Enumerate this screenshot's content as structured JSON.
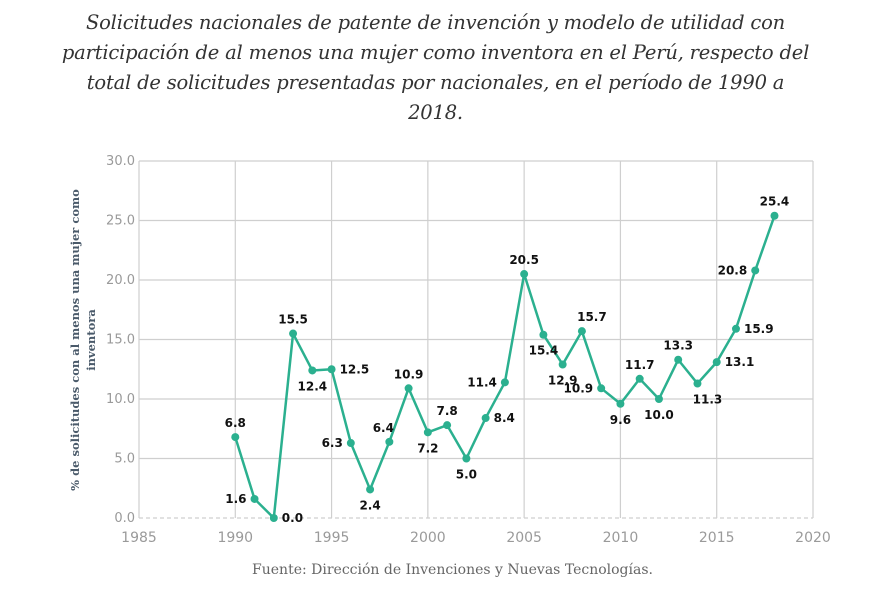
{
  "title": "Solicitudes nacionales de patente de invención y modelo de utilidad con participación de al menos una mujer como inventora en el Perú, respecto del total de solicitudes presentadas por nacionales, en el período de 1990 a 2018.",
  "source": "Fuente: Dirección de Invenciones y Nuevas Tecnologías.",
  "chart_data": {
    "type": "line",
    "title": "Solicitudes nacionales de patente de invención y modelo de utilidad con participación de al menos una mujer como inventora en el Perú, respecto del total de solicitudes presentadas por nacionales, en el período de 1990 a 2018.",
    "xlabel": "",
    "ylabel": [
      "% de solicitudes con al menos una mujer como",
      "inventora"
    ],
    "xlim": [
      1985,
      2020
    ],
    "ylim": [
      0,
      30
    ],
    "xticks": [
      "1985",
      "1990",
      "1995",
      "2000",
      "2005",
      "2010",
      "2015",
      "2020"
    ],
    "yticks": [
      "0.0",
      "5.0",
      "10.0",
      "15.0",
      "20.0",
      "25.0",
      "30.0"
    ],
    "grid": true,
    "color": "#2bb08f",
    "x": [
      1990,
      1991,
      1992,
      1993,
      1994,
      1995,
      1996,
      1997,
      1998,
      1999,
      2000,
      2001,
      2002,
      2003,
      2004,
      2005,
      2006,
      2007,
      2008,
      2009,
      2010,
      2011,
      2012,
      2013,
      2014,
      2015,
      2016,
      2017,
      2018
    ],
    "values": [
      6.8,
      1.6,
      0.0,
      15.5,
      12.4,
      12.5,
      6.3,
      2.4,
      6.4,
      10.9,
      7.2,
      7.8,
      5.0,
      8.4,
      11.4,
      20.5,
      15.4,
      12.9,
      15.7,
      10.9,
      9.6,
      11.7,
      10.0,
      13.3,
      11.3,
      13.1,
      15.9,
      20.8,
      25.4
    ],
    "labels": [
      "6.8",
      "1.6",
      "0.0",
      "15.5",
      "12.4",
      "12.5",
      "6.3",
      "2.4",
      "6.4",
      "10.9",
      "7.2",
      "7.8",
      "5.0",
      "8.4",
      "11.4",
      "20.5",
      "15.4",
      "12.9",
      "15.7",
      "10.9",
      "9.6",
      "11.7",
      "10.0",
      "13.3",
      "11.3",
      "13.1",
      "15.9",
      "20.8",
      "25.4"
    ]
  }
}
